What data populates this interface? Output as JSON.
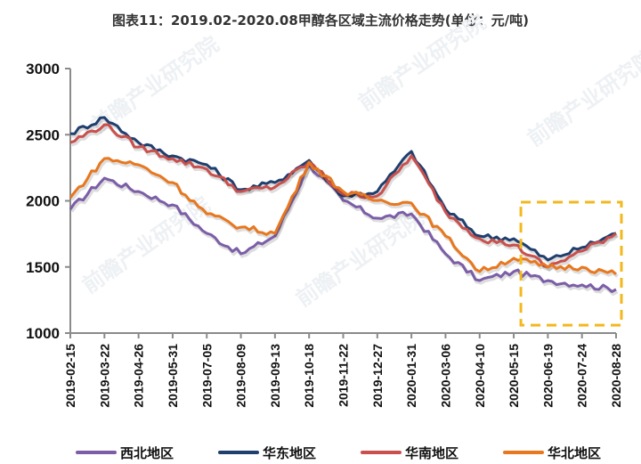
{
  "title": "图表11：2019.02-2020.08甲醇各区域主流价格走势(单位：元/吨)",
  "watermark": "前瞻产业研究院",
  "chart_data": {
    "type": "line",
    "title": "图表11：2019.02-2020.08甲醇各区域主流价格走势(单位：元/吨)",
    "xlabel": "",
    "ylabel": "元/吨",
    "ylim": [
      1000,
      3000
    ],
    "yticks": [
      1000,
      1500,
      2000,
      2500,
      3000
    ],
    "grid": false,
    "legend_position": "bottom",
    "categories": [
      "2019-02-15",
      "2019-03-22",
      "2019-04-26",
      "2019-05-31",
      "2019-07-05",
      "2019-08-09",
      "2019-09-13",
      "2019-10-18",
      "2019-11-22",
      "2019-12-27",
      "2020-01-31",
      "2020-03-06",
      "2020-04-10",
      "2020-05-15",
      "2020-06-19",
      "2020-07-24",
      "2020-08-28"
    ],
    "series": [
      {
        "name": "西北地区",
        "color": "#7B5EA7",
        "values": [
          1936,
          2172,
          2071,
          1970,
          1754,
          1599,
          1734,
          2273,
          2003,
          1869,
          1902,
          1599,
          1397,
          1465,
          1397,
          1364,
          1330
        ]
      },
      {
        "name": "华东地区",
        "color": "#1F3F6E",
        "values": [
          2508,
          2630,
          2441,
          2340,
          2273,
          2084,
          2138,
          2306,
          2037,
          2071,
          2374,
          1936,
          1734,
          1714,
          1552,
          1647,
          1754
        ]
      },
      {
        "name": "华南地区",
        "color": "#C9504C",
        "values": [
          2441,
          2576,
          2407,
          2320,
          2239,
          2071,
          2104,
          2293,
          2051,
          2037,
          2340,
          1916,
          1714,
          1667,
          1498,
          1620,
          1754
        ]
      },
      {
        "name": "华北地区",
        "color": "#E8771E",
        "values": [
          2024,
          2320,
          2273,
          2138,
          1902,
          1801,
          1754,
          2293,
          2071,
          2003,
          1983,
          1734,
          1465,
          1566,
          1498,
          1498,
          1445
        ]
      }
    ],
    "annotations": [
      {
        "type": "dashed-rectangle",
        "color": "#F2B81C",
        "x_range": [
          "2020-05-15",
          "2020-08-28"
        ],
        "y_range": [
          1060,
          1990
        ]
      }
    ]
  }
}
